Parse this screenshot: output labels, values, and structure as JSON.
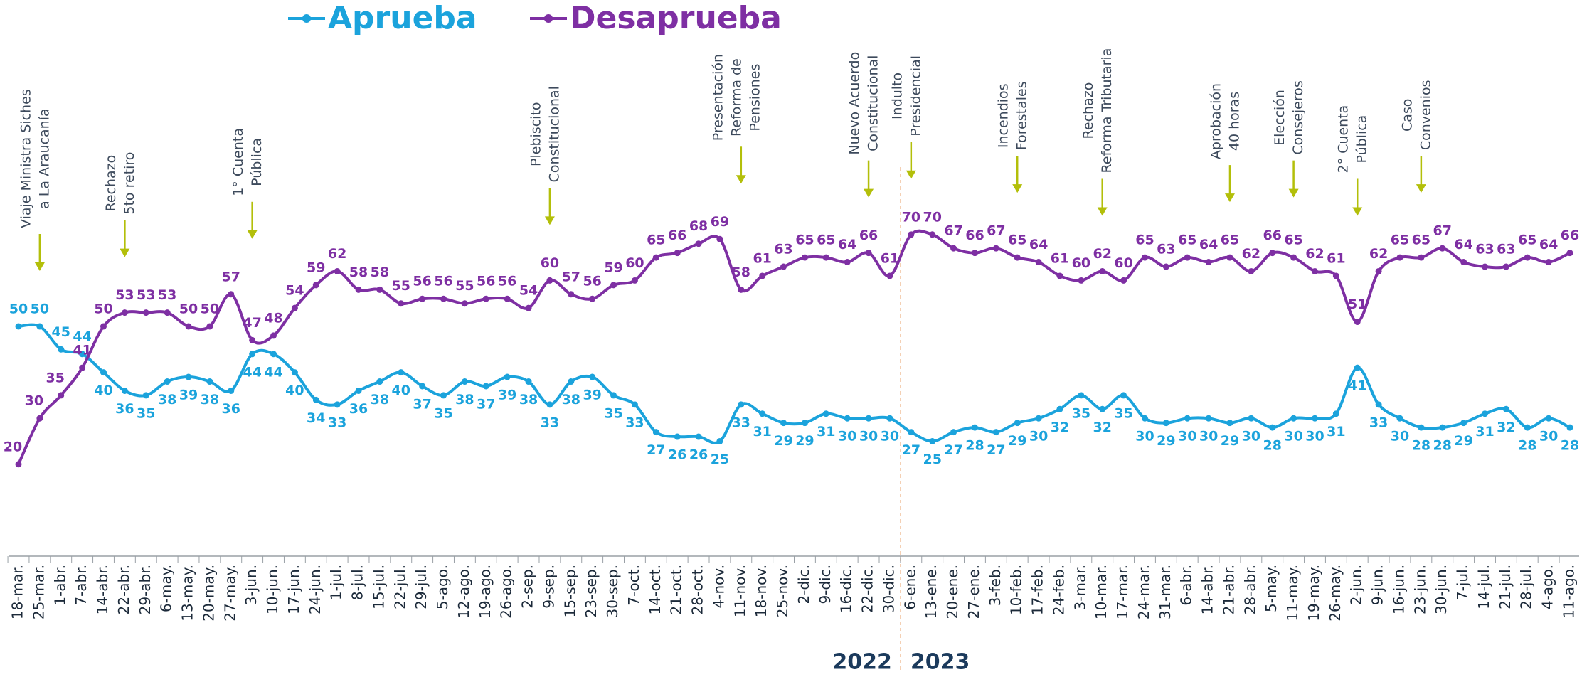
{
  "chart_data": {
    "type": "line",
    "categories": [
      "18-mar.",
      "25-mar.",
      "1-abr.",
      "7-abr.",
      "14-abr.",
      "22-abr.",
      "29-abr.",
      "6-may.",
      "13-may.",
      "20-may.",
      "27-may.",
      "3-jun.",
      "10-jun.",
      "17-jun.",
      "24-jun.",
      "1-jul.",
      "8-jul.",
      "15-jul.",
      "22-jul.",
      "29-jul.",
      "5-ago.",
      "12-ago.",
      "19-ago.",
      "26-ago.",
      "2-sep.",
      "9-sep.",
      "15-sep.",
      "23-sep.",
      "30-sep.",
      "7-oct.",
      "14-oct.",
      "21-oct.",
      "28-oct.",
      "4-nov.",
      "11-nov.",
      "18-nov.",
      "25-nov.",
      "2-dic.",
      "9-dic.",
      "16-dic.",
      "22-dic.",
      "30-dic.",
      "6-ene.",
      "13-ene.",
      "20-ene.",
      "27-ene.",
      "3-feb.",
      "10-feb.",
      "17-feb.",
      "24-feb.",
      "3-mar.",
      "10-mar.",
      "17-mar.",
      "24-mar.",
      "31-mar.",
      "6-abr.",
      "14-abr.",
      "21-abr.",
      "28-abr.",
      "5-may.",
      "11-may.",
      "19-may.",
      "26-may.",
      "2-jun.",
      "9-jun.",
      "16-jun.",
      "23-jun.",
      "30-jun.",
      "7-jul.",
      "14-jul.",
      "21-jul.",
      "28-jul.",
      "4-ago.",
      "11-ago."
    ],
    "series": [
      {
        "name": "Aprueba",
        "color": "#1ba3dc",
        "values": [
          50,
          50,
          45,
          44,
          40,
          36,
          35,
          38,
          39,
          38,
          36,
          44,
          44,
          40,
          34,
          33,
          36,
          38,
          40,
          37,
          35,
          38,
          37,
          39,
          38,
          33,
          38,
          39,
          35,
          33,
          27,
          26,
          26,
          25,
          33,
          31,
          29,
          29,
          31,
          30,
          30,
          30,
          27,
          25,
          27,
          28,
          27,
          29,
          30,
          32,
          35,
          32,
          35,
          30,
          29,
          30,
          30,
          29,
          30,
          28,
          30,
          30,
          31,
          41,
          33,
          30,
          28,
          28,
          29,
          31,
          32,
          28,
          30,
          28
        ]
      },
      {
        "name": "Desaprueba",
        "color": "#7e2fa3",
        "values": [
          20,
          30,
          35,
          41,
          50,
          53,
          53,
          53,
          50,
          50,
          57,
          47,
          48,
          54,
          59,
          62,
          58,
          58,
          55,
          56,
          56,
          55,
          56,
          56,
          54,
          60,
          57,
          56,
          59,
          60,
          65,
          66,
          68,
          69,
          58,
          61,
          63,
          65,
          65,
          64,
          66,
          61,
          70,
          70,
          67,
          66,
          67,
          65,
          64,
          61,
          60,
          62,
          60,
          65,
          63,
          65,
          64,
          65,
          62,
          66,
          65,
          62,
          61,
          51,
          62,
          65,
          65,
          67,
          64,
          63,
          63,
          65,
          64,
          66
        ]
      }
    ],
    "ylim": [
      0,
      100
    ],
    "annotations": [
      {
        "lines": [
          "Viaje Ministra Siches",
          "a La Araucanía"
        ],
        "category": "25-mar."
      },
      {
        "lines": [
          "Rechazo",
          "5to retiro"
        ],
        "category": "22-abr."
      },
      {
        "lines": [
          "1° Cuenta",
          "Pública"
        ],
        "category": "3-jun."
      },
      {
        "lines": [
          "Plebiscito",
          "Constitucional"
        ],
        "category": "9-sep."
      },
      {
        "lines": [
          "Presentación",
          "Reforma de",
          "Pensiones"
        ],
        "category": "11-nov."
      },
      {
        "lines": [
          "Nuevo Acuerdo",
          "Constitucional"
        ],
        "category": "22-dic."
      },
      {
        "lines": [
          "Indulto",
          "Presidencial"
        ],
        "category": "6-ene."
      },
      {
        "lines": [
          "Incendios",
          "Forestales"
        ],
        "category": "10-feb."
      },
      {
        "lines": [
          "Rechazo",
          "Reforma Tributaria"
        ],
        "category": "10-mar."
      },
      {
        "lines": [
          "Aprobación",
          "40 horas"
        ],
        "category": "21-abr."
      },
      {
        "lines": [
          "Elección",
          "Consejeros"
        ],
        "category": "11-may."
      },
      {
        "lines": [
          "2° Cuenta",
          "Pública"
        ],
        "category": "2-jun."
      },
      {
        "lines": [
          "Caso",
          "Convenios"
        ],
        "category": "23-jun."
      }
    ],
    "year_labels": [
      "2022",
      "2023"
    ]
  }
}
